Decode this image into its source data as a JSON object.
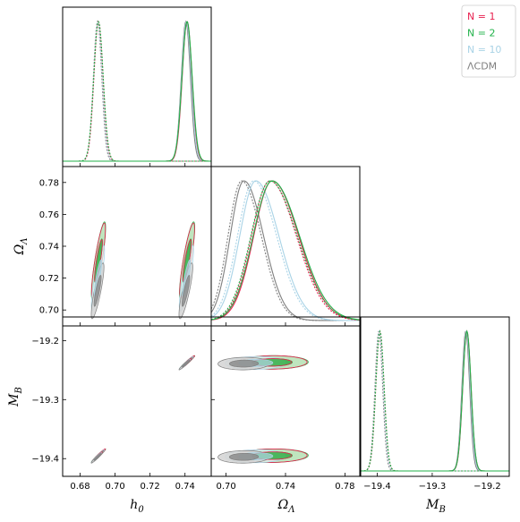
{
  "chart_data": {
    "type": "triangle-corner-plot",
    "parameters": [
      {
        "key": "h0",
        "label_main": "h",
        "label_sub": "0",
        "range": [
          0.67,
          0.755
        ],
        "ticks": [
          0.68,
          0.7,
          0.72,
          0.74
        ],
        "tick_labels": [
          "0.68",
          "0.70",
          "0.72",
          "0.74"
        ]
      },
      {
        "key": "OmegaL",
        "label_main": "Ω",
        "label_sub": "Λ",
        "range": [
          0.69,
          0.79
        ],
        "ticks": [
          0.7,
          0.72,
          0.74,
          0.76,
          0.78
        ],
        "tick_labels": [
          "0.70",
          "0.72",
          "0.74",
          "0.76",
          "0.78"
        ],
        "bottom_ticks": [
          0.7,
          0.74,
          0.78
        ],
        "bottom_tick_labels": [
          "0.70",
          "0.74",
          "0.78"
        ]
      },
      {
        "key": "MB",
        "label_main": "M",
        "label_sub": "B",
        "range": [
          -19.43,
          -19.16
        ],
        "ticks": [
          -19.4,
          -19.3,
          -19.2
        ],
        "tick_labels": [
          "−19.4",
          "−19.3",
          "−19.2"
        ]
      }
    ],
    "legend": {
      "placement": "top-right",
      "entries": [
        {
          "label": "N = 1",
          "color": "#e8204f"
        },
        {
          "label": "N = 2",
          "color": "#21b24a"
        },
        {
          "label": "N = 10",
          "color": "#a9d3e6"
        },
        {
          "label": "ΛCDM",
          "color": "#7f7f7f"
        }
      ]
    },
    "series": [
      {
        "name": "N = 1",
        "color": "#e8204f",
        "fill_outer": null,
        "fill_inner": null,
        "modes": [
          {
            "style": "dashed",
            "h0": {
              "mean": 0.6905,
              "sd": 0.0026
            },
            "OmegaL": {
              "mean": 0.731,
              "sd": 0.0155
            },
            "MB": {
              "mean": -19.395,
              "sd": 0.0075
            }
          },
          {
            "style": "solid",
            "h0": {
              "mean": 0.7412,
              "sd": 0.0028
            },
            "OmegaL": {
              "mean": 0.731,
              "sd": 0.0155
            },
            "MB": {
              "mean": -19.237,
              "sd": 0.0075
            }
          }
        ]
      },
      {
        "name": "N = 2",
        "color": "#21b24a",
        "fill_outer": "#b4e0b3",
        "fill_inner": "#31ad45",
        "modes": [
          {
            "style": "dashed",
            "h0": {
              "mean": 0.6905,
              "sd": 0.0027
            },
            "OmegaL": {
              "mean": 0.731,
              "sd": 0.016
            },
            "MB": {
              "mean": -19.395,
              "sd": 0.0076
            }
          },
          {
            "style": "solid",
            "h0": {
              "mean": 0.7412,
              "sd": 0.0029
            },
            "OmegaL": {
              "mean": 0.731,
              "sd": 0.016
            },
            "MB": {
              "mean": -19.237,
              "sd": 0.0076
            }
          }
        ]
      },
      {
        "name": "N = 10",
        "color": "#a9d3e6",
        "fill_outer": "#e4f1f2",
        "fill_inner": "#aed3dd",
        "modes": [
          {
            "style": "dashed",
            "h0": {
              "mean": 0.6902,
              "sd": 0.0025
            },
            "OmegaL": {
              "mean": 0.72,
              "sd": 0.0135
            },
            "MB": {
              "mean": -19.396,
              "sd": 0.0072
            }
          },
          {
            "style": "solid",
            "h0": {
              "mean": 0.7408,
              "sd": 0.0027
            },
            "OmegaL": {
              "mean": 0.72,
              "sd": 0.0135
            },
            "MB": {
              "mean": -19.238,
              "sd": 0.0072
            }
          }
        ]
      },
      {
        "name": "ΛCDM",
        "color": "#7f7f7f",
        "fill_outer": "#d3d3d3",
        "fill_inner": "#8c8c8c",
        "modes": [
          {
            "style": "dashed",
            "h0": {
              "mean": 0.69,
              "sd": 0.0024
            },
            "OmegaL": {
              "mean": 0.712,
              "sd": 0.0115
            },
            "MB": {
              "mean": -19.397,
              "sd": 0.007
            }
          },
          {
            "style": "solid",
            "h0": {
              "mean": 0.7405,
              "sd": 0.0026
            },
            "OmegaL": {
              "mean": 0.712,
              "sd": 0.0115
            },
            "MB": {
              "mean": -19.239,
              "sd": 0.007
            }
          }
        ]
      }
    ],
    "grid": false
  }
}
